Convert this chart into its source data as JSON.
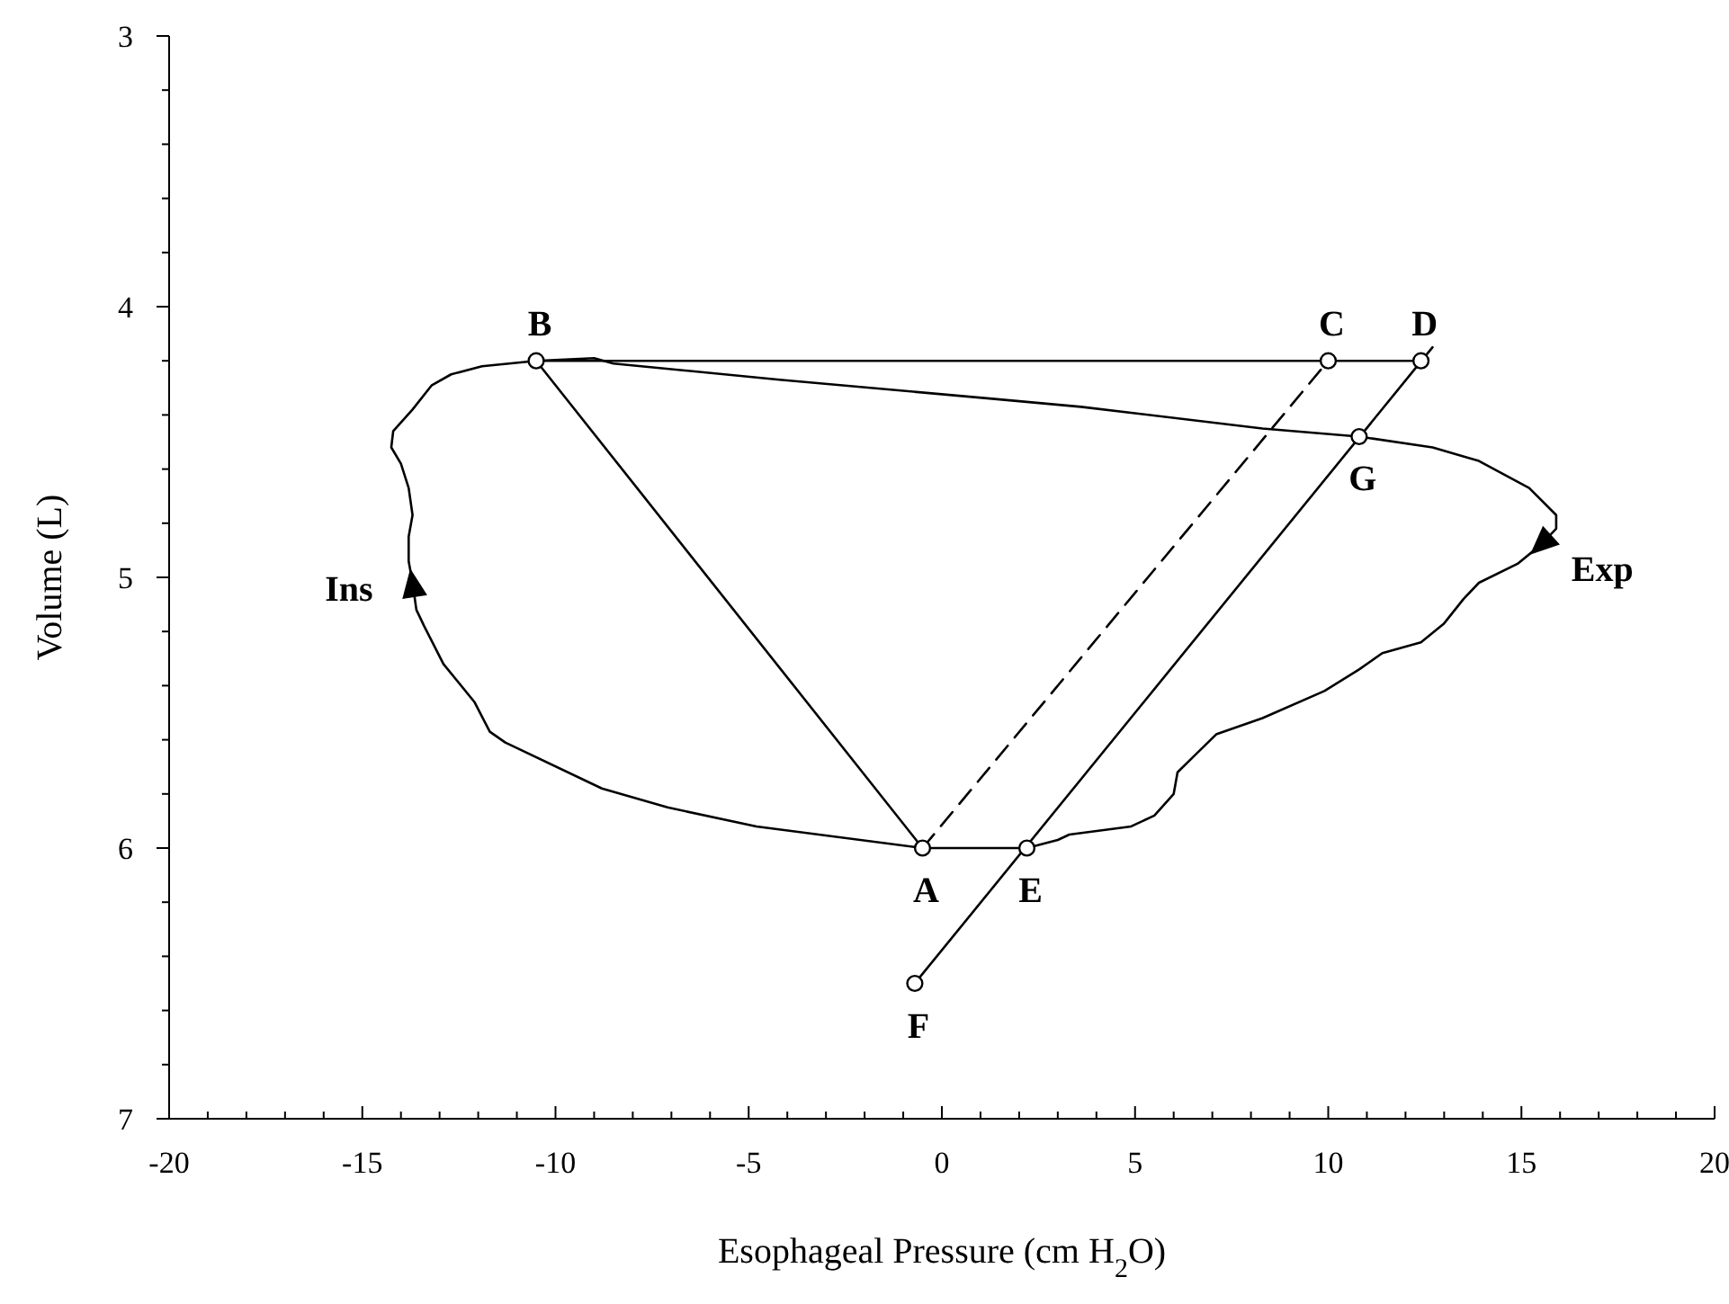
{
  "chart_data": {
    "type": "line",
    "xlabel": "Esophageal Pressure (cm H$_{2}$O)",
    "ylabel": "Volume (L)",
    "xlim": [
      -20,
      20
    ],
    "ylim": [
      7,
      3
    ],
    "xticks": [
      -20,
      {
        "value": -19,
        "label": null
      },
      {
        "value": -18,
        "label": null
      },
      {
        "value": -17,
        "label": null
      },
      {
        "value": -16,
        "label": null
      },
      -15,
      {
        "value": -14,
        "label": null
      },
      {
        "value": -13,
        "label": null
      },
      {
        "value": -12,
        "label": null
      },
      {
        "value": -11,
        "label": null
      },
      -10,
      {
        "value": -9,
        "label": null
      },
      {
        "value": -8,
        "label": null
      },
      {
        "value": -7,
        "label": null
      },
      {
        "value": -6,
        "label": null
      },
      -5,
      {
        "value": -4,
        "label": null
      },
      {
        "value": -3,
        "label": null
      },
      {
        "value": -2,
        "label": null
      },
      {
        "value": -1,
        "label": null
      },
      0,
      {
        "value": 1,
        "label": null
      },
      {
        "value": 2,
        "label": null
      },
      {
        "value": 3,
        "label": null
      },
      {
        "value": 4,
        "label": null
      },
      5,
      {
        "value": 6,
        "label": null
      },
      {
        "value": 7,
        "label": null
      },
      {
        "value": 8,
        "label": null
      },
      {
        "value": 9,
        "label": null
      },
      10,
      {
        "value": 11,
        "label": null
      },
      {
        "value": 12,
        "label": null
      },
      {
        "value": 13,
        "label": null
      },
      {
        "value": 14,
        "label": null
      },
      15,
      {
        "value": 16,
        "label": null
      },
      {
        "value": 17,
        "label": null
      },
      {
        "value": 18,
        "label": null
      },
      {
        "value": 19,
        "label": null
      },
      20
    ],
    "yticks": [
      3,
      {
        "value": 3.2,
        "label": null
      },
      {
        "value": 3.4,
        "label": null
      },
      {
        "value": 3.6,
        "label": null
      },
      {
        "value": 3.8,
        "label": null
      },
      4,
      {
        "value": 4.2,
        "label": null
      },
      {
        "value": 4.4,
        "label": null
      },
      {
        "value": 4.6,
        "label": null
      },
      {
        "value": 4.8,
        "label": null
      },
      5,
      {
        "value": 5.2,
        "label": null
      },
      {
        "value": 5.4,
        "label": null
      },
      {
        "value": 5.6,
        "label": null
      },
      {
        "value": 5.8,
        "label": null
      },
      6,
      {
        "value": 6.2,
        "label": null
      },
      {
        "value": 6.4,
        "label": null
      },
      {
        "value": 6.6,
        "label": null
      },
      {
        "value": 6.8,
        "label": null
      },
      7
    ],
    "grid": false,
    "series": [
      {
        "color": "#000000",
        "line_style": "solid",
        "marker": "none",
        "x": [
          -0.5,
          -4.8,
          -7.1,
          -8.8,
          -11.3,
          -11.7,
          -12.1,
          -12.9,
          -13.4,
          -13.6,
          -13.7,
          -13.8,
          -13.8,
          -13.7,
          -13.8,
          -14.0,
          -14.25,
          -14.2,
          -13.7,
          -13.2,
          -12.7,
          -11.9,
          -10.5,
          -9.0,
          -8.5,
          -4.2,
          1.3,
          3.6,
          8.3,
          10.8,
          12.7,
          13.9,
          15.2,
          15.9,
          15.9,
          15.5,
          14.9,
          13.9,
          13.5,
          13.0,
          12.4,
          11.4,
          10.8,
          9.9,
          8.3,
          7.1,
          6.6,
          6.1,
          6.0,
          5.5,
          4.9,
          3.3,
          3.0,
          2.2
        ],
        "values": [
          6.0,
          5.92,
          5.85,
          5.78,
          5.61,
          5.57,
          5.46,
          5.32,
          5.18,
          5.12,
          5.02,
          4.94,
          4.85,
          4.77,
          4.67,
          4.58,
          4.52,
          4.46,
          4.38,
          4.29,
          4.25,
          4.22,
          4.2,
          4.19,
          4.21,
          4.27,
          4.34,
          4.37,
          4.45,
          4.48,
          4.52,
          4.57,
          4.67,
          4.77,
          4.82,
          4.88,
          4.95,
          5.02,
          5.08,
          5.17,
          5.24,
          5.28,
          5.34,
          5.42,
          5.52,
          5.58,
          5.65,
          5.72,
          5.8,
          5.88,
          5.92,
          5.95,
          5.97,
          6.0
        ]
      },
      {
        "color": "#000000",
        "line_style": "solid",
        "marker": "none",
        "x": [
          -0.5,
          2.2
        ],
        "values": [
          6.0,
          6.0
        ]
      },
      {
        "color": "#000000",
        "line_style": "solid",
        "marker": "none",
        "x": [
          -10.5,
          -0.5
        ],
        "values": [
          4.2,
          6.0
        ]
      },
      {
        "color": "#000000",
        "line_style": "solid",
        "marker": "none",
        "x": [
          -10.5,
          12.4
        ],
        "values": [
          4.2,
          4.2
        ]
      },
      {
        "color": "#000000",
        "line_style": "solid",
        "marker": "none",
        "x": [
          -0.7,
          12.7
        ],
        "values": [
          6.5,
          4.15
        ]
      },
      {
        "color": "#000000",
        "line_style": "dashed",
        "marker": "none",
        "x": [
          -0.5,
          10
        ],
        "values": [
          6.0,
          4.2
        ]
      },
      {
        "type": "scatter",
        "color": "#000000",
        "marker": "circle",
        "x": [
          -0.5,
          -10.5,
          10,
          12.4,
          2.2,
          -0.7,
          10.8
        ],
        "values": [
          6.0,
          4.2,
          4.2,
          4.2,
          6.0,
          6.5,
          4.48
        ]
      }
    ],
    "annotations": [
      {
        "text": "A",
        "x": -0.5,
        "y": 6.0
      },
      {
        "text": "B",
        "x": -10.5,
        "y": 4.2
      },
      {
        "text": "C",
        "x": 10,
        "y": 4.2
      },
      {
        "text": "D",
        "x": 12.4,
        "y": 4.2
      },
      {
        "text": "E",
        "x": 2.2,
        "y": 6.0
      },
      {
        "text": "F",
        "x": -0.7,
        "y": 6.5
      },
      {
        "text": "G",
        "x": 10.8,
        "y": 4.48
      },
      {
        "text": "Ins",
        "x": -13.7,
        "y": 5.02
      },
      {
        "text": "Exp",
        "x": 15.5,
        "y": 4.88
      }
    ]
  }
}
